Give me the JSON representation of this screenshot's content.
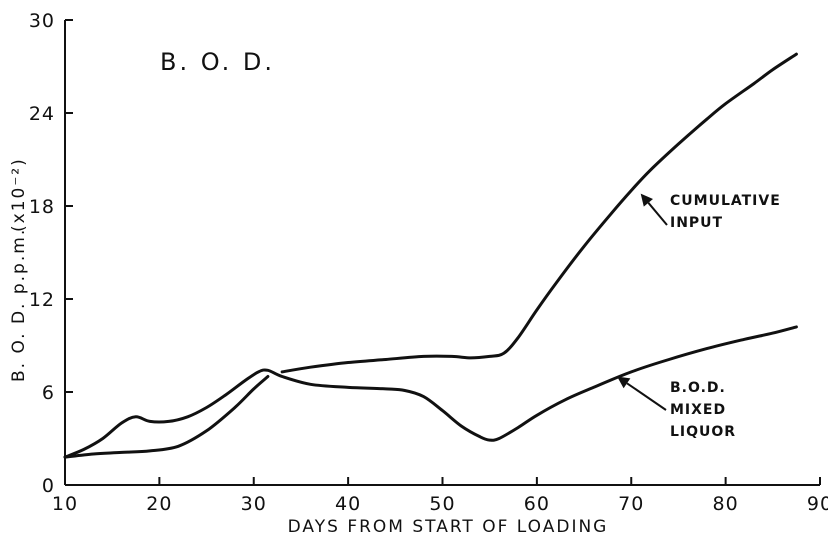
{
  "chart_data": {
    "type": "line",
    "title": "B. O. D.",
    "xlabel": "DAYS FROM START OF LOADING",
    "ylabel_main": "B. O. D. p.p.m.",
    "ylabel_scale": "(x10⁻²)",
    "xlim": [
      10,
      90
    ],
    "ylim": [
      0,
      30
    ],
    "xticks": [
      10,
      20,
      30,
      40,
      50,
      60,
      70,
      80,
      90
    ],
    "yticks": [
      0,
      6,
      12,
      18,
      24,
      30
    ],
    "grid": false,
    "series": [
      {
        "name": "CUMULATIVE INPUT",
        "segments": [
          [
            [
              10,
              1.8
            ],
            [
              13,
              2.0
            ],
            [
              16,
              2.1
            ],
            [
              19,
              2.2
            ],
            [
              22,
              2.5
            ],
            [
              25,
              3.5
            ],
            [
              28,
              5.0
            ],
            [
              30,
              6.2
            ],
            [
              31.5,
              7.0
            ]
          ],
          [
            [
              33,
              7.3
            ],
            [
              36,
              7.6
            ],
            [
              40,
              7.9
            ],
            [
              44,
              8.1
            ],
            [
              48,
              8.3
            ],
            [
              51,
              8.3
            ],
            [
              53,
              8.2
            ],
            [
              55,
              8.3
            ],
            [
              56.5,
              8.5
            ],
            [
              58,
              9.5
            ],
            [
              60,
              11.3
            ],
            [
              62,
              13.0
            ],
            [
              65,
              15.4
            ],
            [
              68,
              17.6
            ],
            [
              70,
              19.0
            ],
            [
              72,
              20.3
            ],
            [
              75,
              22.0
            ],
            [
              78,
              23.6
            ],
            [
              80,
              24.6
            ],
            [
              83,
              25.9
            ],
            [
              85,
              26.8
            ],
            [
              87.5,
              27.8
            ]
          ]
        ]
      },
      {
        "name": "B.O.D. MIXED LIQUOR",
        "segments": [
          [
            [
              10,
              1.8
            ],
            [
              12,
              2.3
            ],
            [
              14,
              3.0
            ],
            [
              16,
              4.0
            ],
            [
              17.5,
              4.4
            ],
            [
              19,
              4.1
            ],
            [
              21,
              4.1
            ],
            [
              23,
              4.4
            ],
            [
              25,
              5.0
            ],
            [
              27,
              5.8
            ],
            [
              29,
              6.7
            ],
            [
              30.5,
              7.3
            ],
            [
              31.5,
              7.4
            ],
            [
              33,
              7.0
            ],
            [
              36,
              6.5
            ],
            [
              40,
              6.3
            ],
            [
              44,
              6.2
            ],
            [
              46,
              6.1
            ],
            [
              48,
              5.7
            ],
            [
              50,
              4.8
            ],
            [
              52,
              3.8
            ],
            [
              54,
              3.1
            ],
            [
              55,
              2.9
            ],
            [
              56,
              3.0
            ],
            [
              58,
              3.7
            ],
            [
              60,
              4.5
            ],
            [
              63,
              5.5
            ],
            [
              66,
              6.3
            ],
            [
              70,
              7.3
            ],
            [
              74,
              8.1
            ],
            [
              78,
              8.8
            ],
            [
              82,
              9.4
            ],
            [
              85,
              9.8
            ],
            [
              87.5,
              10.2
            ]
          ]
        ]
      }
    ],
    "annotations": [
      {
        "lines": [
          "CUMULATIVE",
          "INPUT"
        ],
        "points_to": [
          71,
          18.8
        ]
      },
      {
        "lines": [
          "B.O.D.",
          "MIXED",
          "LIQUOR"
        ],
        "points_to": [
          68.5,
          7.0
        ]
      }
    ]
  }
}
